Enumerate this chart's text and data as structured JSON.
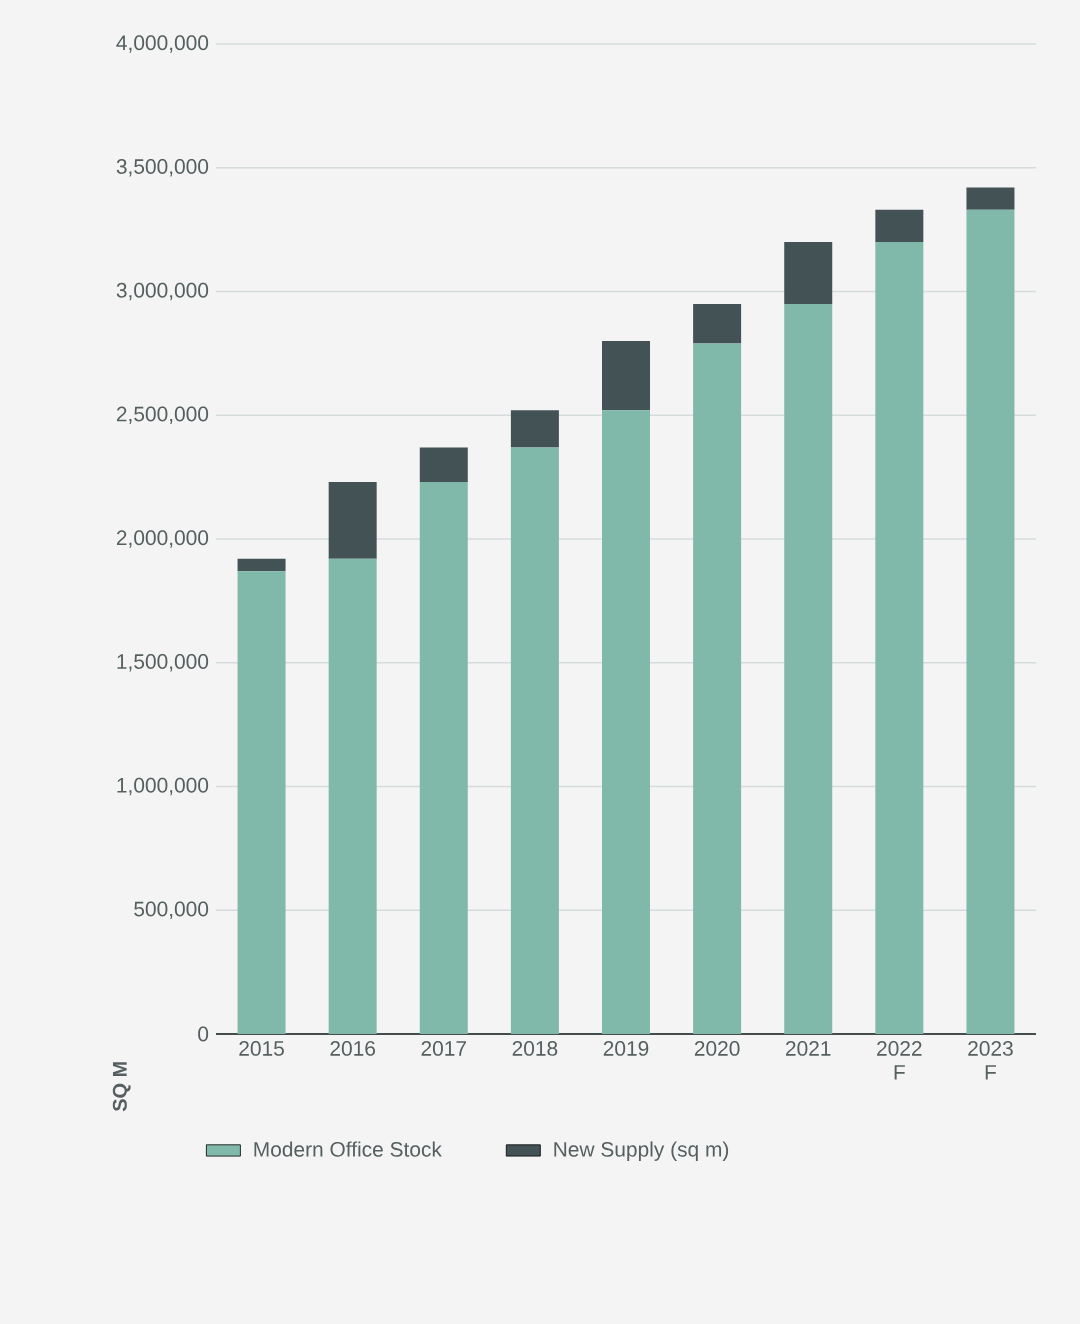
{
  "chart_data": {
    "type": "bar",
    "stacked": true,
    "ylabel": "SQ M",
    "categories": [
      "2015",
      "2016",
      "2017",
      "2018",
      "2019",
      "2020",
      "2021",
      "2022 F",
      "2023 F"
    ],
    "series": [
      {
        "name": "Modern Office Stock",
        "color": "#80b9a9",
        "values": [
          1870000,
          1920000,
          2230000,
          2370000,
          2520000,
          2790000,
          2950000,
          3200000,
          3330000
        ]
      },
      {
        "name": "New Supply (sq m)",
        "color": "#435254",
        "values": [
          50000,
          310000,
          140000,
          150000,
          280000,
          160000,
          250000,
          130000,
          90000
        ]
      }
    ],
    "ylim": [
      0,
      4000000
    ],
    "yticks": [
      {
        "value": 0,
        "label": "0"
      },
      {
        "value": 500000,
        "label": "500,000"
      },
      {
        "value": 1000000,
        "label": "1,000,000"
      },
      {
        "value": 1500000,
        "label": "1,500,000"
      },
      {
        "value": 2000000,
        "label": "2,000,000"
      },
      {
        "value": 2500000,
        "label": "2,500,000"
      },
      {
        "value": 3000000,
        "label": "3,000,000"
      },
      {
        "value": 3500000,
        "label": "3,500,000"
      },
      {
        "value": 4000000,
        "label": "4,000,000"
      }
    ],
    "grid": "y",
    "legend": "bottom"
  }
}
